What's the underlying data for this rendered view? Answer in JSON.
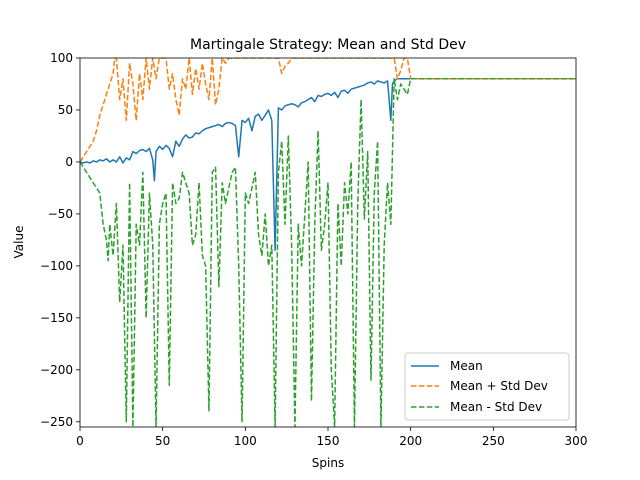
{
  "chart_data": {
    "type": "line",
    "title": "Martingale Strategy: Mean and Std Dev",
    "xlabel": "Spins",
    "ylabel": "Value",
    "xlim": [
      0,
      300
    ],
    "ylim": [
      -255,
      100
    ],
    "xticks": [
      0,
      50,
      100,
      150,
      200,
      250,
      300
    ],
    "yticks": [
      -250,
      -200,
      -150,
      -100,
      -50,
      0,
      50,
      100
    ],
    "ytick_labels": [
      "−250",
      "−200",
      "−150",
      "−100",
      "−50",
      "0",
      "50",
      "100"
    ],
    "grid": false,
    "legend_position": "lower-right",
    "series": [
      {
        "name": "Mean",
        "color": "#1f77b4",
        "style": "solid",
        "x": [
          0,
          2,
          4,
          6,
          8,
          10,
          12,
          14,
          16,
          18,
          20,
          22,
          24,
          26,
          28,
          30,
          32,
          34,
          36,
          38,
          40,
          42,
          44,
          45,
          46,
          48,
          50,
          52,
          54,
          56,
          58,
          60,
          62,
          64,
          66,
          68,
          70,
          72,
          74,
          76,
          78,
          80,
          82,
          84,
          86,
          88,
          90,
          92,
          94,
          96,
          98,
          100,
          102,
          104,
          106,
          108,
          110,
          112,
          114,
          116,
          118,
          120,
          122,
          124,
          126,
          128,
          130,
          132,
          134,
          136,
          138,
          140,
          142,
          144,
          146,
          148,
          150,
          152,
          154,
          156,
          158,
          160,
          162,
          164,
          166,
          168,
          170,
          172,
          174,
          176,
          178,
          180,
          182,
          184,
          186,
          188,
          189,
          190,
          192,
          194,
          196,
          198,
          200,
          250,
          300
        ],
        "y": [
          0,
          -1,
          0,
          -1,
          1,
          0,
          2,
          1,
          3,
          0,
          2,
          0,
          5,
          -1,
          4,
          2,
          10,
          8,
          11,
          12,
          10,
          13,
          2,
          -18,
          10,
          15,
          12,
          16,
          13,
          5,
          20,
          15,
          22,
          26,
          23,
          24,
          28,
          27,
          30,
          32,
          33,
          34,
          35,
          36,
          34,
          37,
          38,
          37,
          35,
          5,
          40,
          38,
          42,
          30,
          44,
          46,
          40,
          45,
          50,
          40,
          -85,
          52,
          50,
          54,
          55,
          56,
          55,
          53,
          57,
          58,
          60,
          62,
          58,
          64,
          63,
          65,
          66,
          64,
          67,
          62,
          68,
          69,
          66,
          70,
          71,
          72,
          73,
          74,
          76,
          77,
          75,
          78,
          77,
          76,
          78,
          40,
          75,
          78,
          80,
          80,
          80,
          80,
          80,
          80,
          80
        ]
      },
      {
        "name": "Mean + Std Dev",
        "color": "#ff7f0e",
        "style": "dashed",
        "x": [
          0,
          2,
          4,
          6,
          8,
          10,
          12,
          14,
          16,
          18,
          20,
          21,
          22,
          24,
          26,
          28,
          30,
          32,
          34,
          36,
          38,
          40,
          42,
          44,
          46,
          48,
          50,
          52,
          54,
          56,
          58,
          60,
          62,
          64,
          66,
          68,
          70,
          72,
          74,
          76,
          78,
          80,
          82,
          84,
          86,
          88,
          90,
          92,
          94,
          96,
          98,
          100,
          110,
          120,
          122,
          124,
          126,
          128,
          130,
          140,
          150,
          160,
          170,
          180,
          190,
          192,
          194,
          196,
          198,
          200,
          250,
          300
        ],
        "y": [
          0,
          5,
          10,
          15,
          20,
          30,
          45,
          55,
          65,
          75,
          85,
          100,
          100,
          60,
          80,
          40,
          95,
          75,
          40,
          85,
          60,
          100,
          70,
          100,
          80,
          100,
          100,
          100,
          70,
          85,
          60,
          45,
          80,
          70,
          100,
          65,
          90,
          70,
          95,
          75,
          60,
          100,
          55,
          70,
          100,
          95,
          100,
          100,
          100,
          100,
          100,
          100,
          100,
          100,
          85,
          92,
          95,
          100,
          100,
          100,
          100,
          100,
          100,
          100,
          100,
          80,
          88,
          100,
          100,
          80,
          80,
          80
        ]
      },
      {
        "name": "Mean - Std Dev",
        "color": "#2ca02c",
        "style": "dashed",
        "x": [
          0,
          4,
          8,
          12,
          14,
          16,
          17,
          18,
          20,
          22,
          24,
          26,
          28,
          30,
          32,
          34,
          36,
          38,
          40,
          42,
          44,
          46,
          48,
          50,
          52,
          54,
          56,
          58,
          60,
          62,
          64,
          66,
          68,
          70,
          72,
          74,
          76,
          78,
          80,
          82,
          84,
          86,
          88,
          90,
          92,
          94,
          96,
          98,
          100,
          102,
          104,
          106,
          108,
          110,
          112,
          114,
          116,
          118,
          120,
          122,
          124,
          126,
          128,
          130,
          132,
          134,
          136,
          138,
          140,
          142,
          144,
          146,
          148,
          150,
          152,
          154,
          156,
          158,
          160,
          162,
          164,
          166,
          168,
          170,
          172,
          174,
          176,
          178,
          180,
          182,
          184,
          186,
          188,
          190,
          192,
          194,
          196,
          198,
          200,
          250,
          300
        ],
        "y": [
          0,
          -10,
          -20,
          -30,
          -60,
          -75,
          -95,
          -60,
          -90,
          -40,
          -135,
          -80,
          -250,
          -20,
          -255,
          -60,
          -80,
          -10,
          -150,
          -30,
          -80,
          -255,
          -60,
          -40,
          -30,
          -215,
          -20,
          -40,
          -35,
          -10,
          -20,
          -30,
          -80,
          -70,
          -20,
          -90,
          -100,
          -240,
          -10,
          -5,
          -120,
          -20,
          -40,
          -25,
          -10,
          -5,
          -100,
          -250,
          -30,
          -40,
          -25,
          -10,
          -70,
          -90,
          -50,
          -100,
          -80,
          -255,
          -10,
          20,
          -60,
          25,
          -80,
          -255,
          -60,
          -100,
          -50,
          0,
          -230,
          -60,
          30,
          -85,
          -60,
          -20,
          -200,
          -255,
          -40,
          -100,
          -20,
          -50,
          0,
          -255,
          -40,
          60,
          -55,
          10,
          -210,
          -30,
          20,
          -255,
          -80,
          -20,
          -60,
          80,
          60,
          75,
          70,
          65,
          80,
          80,
          80
        ]
      }
    ]
  }
}
